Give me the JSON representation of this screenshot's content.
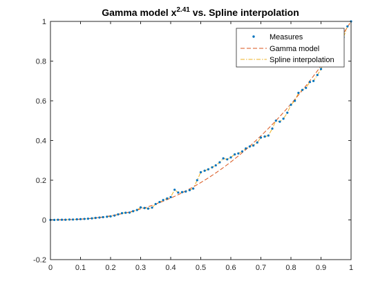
{
  "chart_data": {
    "type": "line",
    "title": {
      "main": "Gamma model x",
      "superscript": "2.41",
      "suffix": " vs. Spline interpolation"
    },
    "xlim": [
      0,
      1
    ],
    "ylim": [
      -0.2,
      1
    ],
    "x_ticks": [
      0,
      0.1,
      0.2,
      0.3,
      0.4,
      0.5,
      0.6,
      0.7,
      0.8,
      0.9,
      1
    ],
    "x_tick_labels": [
      "0",
      "0.1",
      "0.2",
      "0.3",
      "0.4",
      "0.5",
      "0.6",
      "0.7",
      "0.8",
      "0.9",
      "1"
    ],
    "y_ticks": [
      -0.2,
      0,
      0.2,
      0.4,
      0.6,
      0.8,
      1
    ],
    "y_tick_labels": [
      "-0.2",
      "0",
      "0.2",
      "0.4",
      "0.6",
      "0.8",
      "1"
    ],
    "legend_position": "top-right",
    "series": [
      {
        "name": "Measures",
        "style": "points",
        "color": "#0072BD",
        "points": [
          [
            0.0,
            0.0
          ],
          [
            0.013,
            0.0
          ],
          [
            0.025,
            0.001
          ],
          [
            0.038,
            0.001
          ],
          [
            0.05,
            0.001
          ],
          [
            0.063,
            0.002
          ],
          [
            0.075,
            0.002
          ],
          [
            0.088,
            0.003
          ],
          [
            0.1,
            0.004
          ],
          [
            0.113,
            0.005
          ],
          [
            0.125,
            0.006
          ],
          [
            0.138,
            0.008
          ],
          [
            0.15,
            0.01
          ],
          [
            0.163,
            0.012
          ],
          [
            0.175,
            0.014
          ],
          [
            0.188,
            0.016
          ],
          [
            0.2,
            0.018
          ],
          [
            0.213,
            0.022
          ],
          [
            0.225,
            0.028
          ],
          [
            0.238,
            0.034
          ],
          [
            0.25,
            0.036
          ],
          [
            0.263,
            0.037
          ],
          [
            0.275,
            0.044
          ],
          [
            0.288,
            0.05
          ],
          [
            0.3,
            0.063
          ],
          [
            0.313,
            0.06
          ],
          [
            0.325,
            0.057
          ],
          [
            0.338,
            0.062
          ],
          [
            0.35,
            0.08
          ],
          [
            0.363,
            0.09
          ],
          [
            0.375,
            0.1
          ],
          [
            0.388,
            0.108
          ],
          [
            0.4,
            0.115
          ],
          [
            0.413,
            0.152
          ],
          [
            0.425,
            0.138
          ],
          [
            0.438,
            0.14
          ],
          [
            0.45,
            0.143
          ],
          [
            0.463,
            0.15
          ],
          [
            0.475,
            0.158
          ],
          [
            0.488,
            0.2
          ],
          [
            0.5,
            0.24
          ],
          [
            0.513,
            0.248
          ],
          [
            0.525,
            0.255
          ],
          [
            0.538,
            0.265
          ],
          [
            0.55,
            0.275
          ],
          [
            0.563,
            0.29
          ],
          [
            0.575,
            0.31
          ],
          [
            0.588,
            0.305
          ],
          [
            0.6,
            0.315
          ],
          [
            0.613,
            0.33
          ],
          [
            0.625,
            0.335
          ],
          [
            0.638,
            0.345
          ],
          [
            0.65,
            0.36
          ],
          [
            0.663,
            0.37
          ],
          [
            0.675,
            0.375
          ],
          [
            0.688,
            0.39
          ],
          [
            0.7,
            0.415
          ],
          [
            0.713,
            0.42
          ],
          [
            0.725,
            0.425
          ],
          [
            0.738,
            0.46
          ],
          [
            0.75,
            0.5
          ],
          [
            0.763,
            0.495
          ],
          [
            0.775,
            0.51
          ],
          [
            0.788,
            0.54
          ],
          [
            0.8,
            0.58
          ],
          [
            0.813,
            0.6
          ],
          [
            0.825,
            0.64
          ],
          [
            0.838,
            0.655
          ],
          [
            0.85,
            0.665
          ],
          [
            0.863,
            0.695
          ],
          [
            0.875,
            0.7
          ],
          [
            0.888,
            0.73
          ],
          [
            0.9,
            0.76
          ],
          [
            0.913,
            0.8
          ],
          [
            0.925,
            0.84
          ],
          [
            0.938,
            0.855
          ],
          [
            0.95,
            0.875
          ],
          [
            0.963,
            0.89
          ],
          [
            0.975,
            0.92
          ],
          [
            0.988,
            0.975
          ],
          [
            1.0,
            1.0
          ]
        ]
      },
      {
        "name": "Gamma model",
        "style": "dashed",
        "color": "#D95319",
        "gamma": 2.41
      },
      {
        "name": "Spline interpolation",
        "style": "dash-dot",
        "color": "#EDB120"
      }
    ]
  }
}
